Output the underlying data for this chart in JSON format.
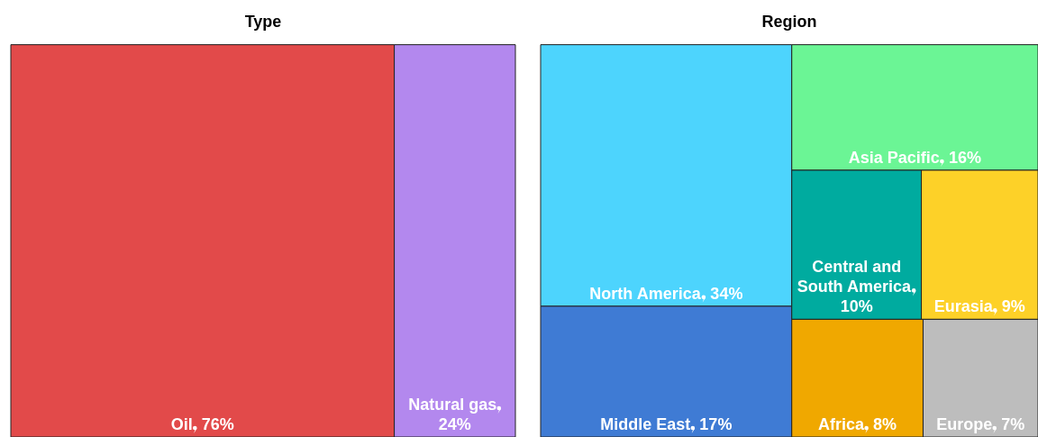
{
  "chart_data": [
    {
      "type": "other",
      "title": "Type",
      "categories": [
        "Oil",
        "Natural gas"
      ],
      "values": [
        76,
        24
      ],
      "value_labels": [
        "76%",
        "24%"
      ],
      "colors": [
        "#e24a4a",
        "#b388ee"
      ]
    },
    {
      "type": "other",
      "title": "Region",
      "categories": [
        "North America",
        "Middle East",
        "Asia Pacific",
        "Central and South America",
        "Eurasia",
        "Africa",
        "Europe"
      ],
      "values": [
        34,
        17,
        16,
        10,
        9,
        8,
        7
      ],
      "value_labels": [
        "34%",
        "17%",
        "16%",
        "10%",
        "9%",
        "8%",
        "7%"
      ],
      "colors": [
        "#4dd4fd",
        "#3f7bd4",
        "#6bf595",
        "#00ab9f",
        "#fdd128",
        "#f0a800",
        "#bdbdbd"
      ]
    }
  ]
}
